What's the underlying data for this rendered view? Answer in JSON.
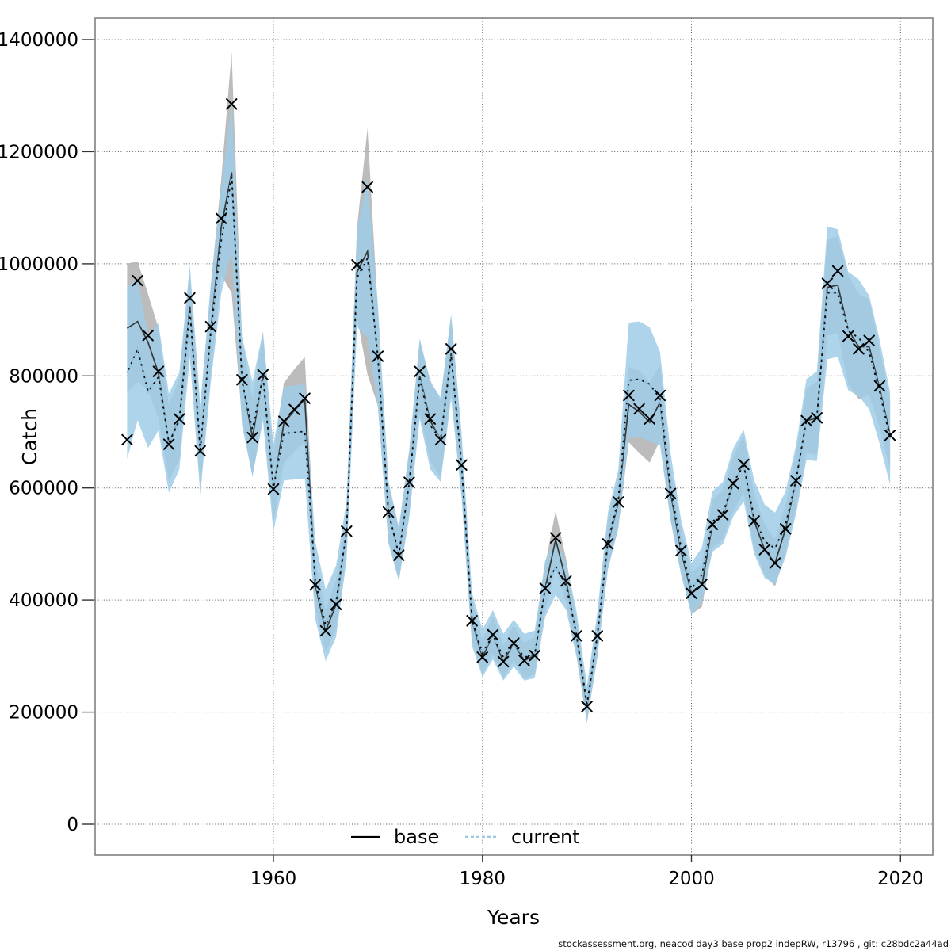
{
  "footer": {
    "text": "stockassessment.org, neacod day3 base prop2 indepRW, r13796 , git: c28bdc2a44ad"
  },
  "legend": {
    "base_label": "base",
    "current_label": "current"
  },
  "colors": {
    "base_line": "#2f2f2f",
    "base_band": "#b0b0b0",
    "current_line_dark": "#0a0a0a",
    "current_line_blue": "#8fc3e0",
    "current_legend_swatch": "#9ecae1",
    "current_band": "#9fcde6",
    "marker": "#000000",
    "grid": "#404040",
    "frame": "#787878"
  },
  "chart_data": {
    "type": "line",
    "title": "",
    "xlabel": "Years",
    "ylabel": "Catch",
    "legend_position": "bottom-center-inside",
    "grid": "dotted",
    "xlim": [
      1943,
      2023
    ],
    "ylim": [
      -55000,
      1438000
    ],
    "x_ticks": {
      "values": [
        1960,
        1980,
        2000,
        2020
      ],
      "labels": [
        "1960",
        "1980",
        "2000",
        "2020"
      ]
    },
    "y_ticks": {
      "values": [
        0,
        200000,
        400000,
        600000,
        800000,
        1000000,
        1200000,
        1400000
      ],
      "labels": [
        "0",
        "200000",
        "400000",
        "600000",
        "800000",
        "1000000",
        "1200000",
        "1400000"
      ]
    },
    "years": [
      1946,
      1947,
      1948,
      1949,
      1950,
      1951,
      1952,
      1953,
      1954,
      1955,
      1956,
      1957,
      1958,
      1959,
      1960,
      1961,
      1962,
      1963,
      1964,
      1965,
      1966,
      1967,
      1968,
      1969,
      1970,
      1971,
      1972,
      1973,
      1974,
      1975,
      1976,
      1977,
      1978,
      1979,
      1980,
      1981,
      1982,
      1983,
      1984,
      1985,
      1986,
      1987,
      1988,
      1989,
      1990,
      1991,
      1992,
      1993,
      1994,
      1995,
      1996,
      1997,
      1998,
      1999,
      2000,
      2001,
      2002,
      2003,
      2004,
      2005,
      2006,
      2007,
      2008,
      2009,
      2010,
      2011,
      2012,
      2013,
      2014,
      2015,
      2016,
      2017,
      2018,
      2019
    ],
    "markers": {
      "symbol": "x",
      "name": "observed catch",
      "values": [
        686000,
        970000,
        872000,
        808000,
        678000,
        723000,
        939000,
        666000,
        888000,
        1081000,
        1285000,
        793000,
        690000,
        802000,
        598000,
        719000,
        740000,
        760000,
        427000,
        345000,
        392000,
        523000,
        998000,
        1137000,
        835000,
        557000,
        480000,
        610000,
        808000,
        723000,
        686000,
        848000,
        641000,
        363000,
        298000,
        338000,
        290000,
        323000,
        292000,
        301000,
        421000,
        511000,
        434000,
        336000,
        210000,
        336000,
        500000,
        575000,
        765000,
        741000,
        723000,
        765000,
        590000,
        488000,
        412000,
        428000,
        535000,
        552000,
        608000,
        642000,
        541000,
        490000,
        466000,
        527000,
        613000,
        720000,
        725000,
        965000,
        987000,
        871000,
        848000,
        863000,
        782000,
        694000
      ]
    },
    "series": [
      {
        "name": "base",
        "style": "solid",
        "values": [
          885000,
          897000,
          860000,
          805000,
          680000,
          723000,
          924000,
          666000,
          880000,
          1065000,
          1163000,
          793000,
          690000,
          802000,
          598000,
          716000,
          738000,
          758000,
          427000,
          345000,
          392000,
          523000,
          985000,
          1022000,
          830000,
          557000,
          480000,
          610000,
          800000,
          720000,
          686000,
          840000,
          641000,
          363000,
          298000,
          338000,
          290000,
          323000,
          292000,
          301000,
          421000,
          508000,
          434000,
          336000,
          210000,
          336000,
          500000,
          575000,
          749000,
          736000,
          717000,
          753000,
          592000,
          488000,
          412000,
          426000,
          535000,
          552000,
          608000,
          642000,
          541000,
          490000,
          466000,
          527000,
          613000,
          720000,
          725000,
          958000,
          962000,
          882000,
          852000,
          852000,
          778000,
          695000
        ],
        "ci_pct": [
          0.13,
          0.12,
          0.1,
          0.1,
          0.1,
          0.1,
          0.07,
          0.1,
          0.09,
          0.08,
          0.185,
          0.09,
          0.1,
          0.09,
          0.1,
          0.1,
          0.1,
          0.1,
          0.1,
          0.11,
          0.11,
          0.08,
          0.08,
          0.215,
          0.1,
          0.09,
          0.09,
          0.09,
          0.08,
          0.1,
          0.1,
          0.08,
          0.08,
          0.1,
          0.1,
          0.1,
          0.1,
          0.1,
          0.11,
          0.11,
          0.1,
          0.1,
          0.09,
          0.1,
          0.14,
          0.1,
          0.09,
          0.08,
          0.09,
          0.1,
          0.1,
          0.09,
          0.08,
          0.08,
          0.09,
          0.09,
          0.08,
          0.08,
          0.08,
          0.08,
          0.09,
          0.09,
          0.09,
          0.08,
          0.08,
          0.08,
          0.09,
          0.09,
          0.09,
          0.11,
          0.11,
          0.1,
          0.09,
          0.09
        ]
      },
      {
        "name": "current",
        "style": "dotted",
        "values": [
          805000,
          848000,
          772000,
          798000,
          680000,
          720000,
          915000,
          668000,
          875000,
          1040000,
          1155000,
          790000,
          705000,
          800000,
          600000,
          697000,
          699000,
          701000,
          435000,
          355000,
          398000,
          523000,
          975000,
          1010000,
          835000,
          557000,
          482000,
          608000,
          795000,
          712000,
          686000,
          835000,
          641000,
          365000,
          305000,
          338000,
          298000,
          323000,
          298000,
          303000,
          420000,
          460000,
          425000,
          340000,
          215000,
          338000,
          505000,
          580000,
          792000,
          794000,
          785000,
          759000,
          603000,
          495000,
          420000,
          445000,
          540000,
          555000,
          610000,
          640000,
          548000,
          505000,
          492000,
          535000,
          615000,
          722000,
          728000,
          948000,
          948000,
          880000,
          868000,
          842000,
          772000,
          688000
        ],
        "ci_pct": [
          0.19,
          0.15,
          0.13,
          0.12,
          0.13,
          0.12,
          0.09,
          0.12,
          0.1,
          0.09,
          0.115,
          0.1,
          0.12,
          0.1,
          0.13,
          0.12,
          0.12,
          0.12,
          0.16,
          0.18,
          0.16,
          0.1,
          0.09,
          0.14,
          0.11,
          0.1,
          0.1,
          0.1,
          0.09,
          0.11,
          0.11,
          0.09,
          0.09,
          0.13,
          0.14,
          0.13,
          0.14,
          0.13,
          0.14,
          0.14,
          0.12,
          0.11,
          0.1,
          0.12,
          0.15,
          0.12,
          0.1,
          0.09,
          0.13,
          0.13,
          0.13,
          0.11,
          0.1,
          0.1,
          0.11,
          0.11,
          0.1,
          0.1,
          0.1,
          0.1,
          0.12,
          0.13,
          0.13,
          0.11,
          0.1,
          0.1,
          0.11,
          0.125,
          0.12,
          0.12,
          0.12,
          0.12,
          0.12,
          0.12
        ]
      }
    ]
  }
}
